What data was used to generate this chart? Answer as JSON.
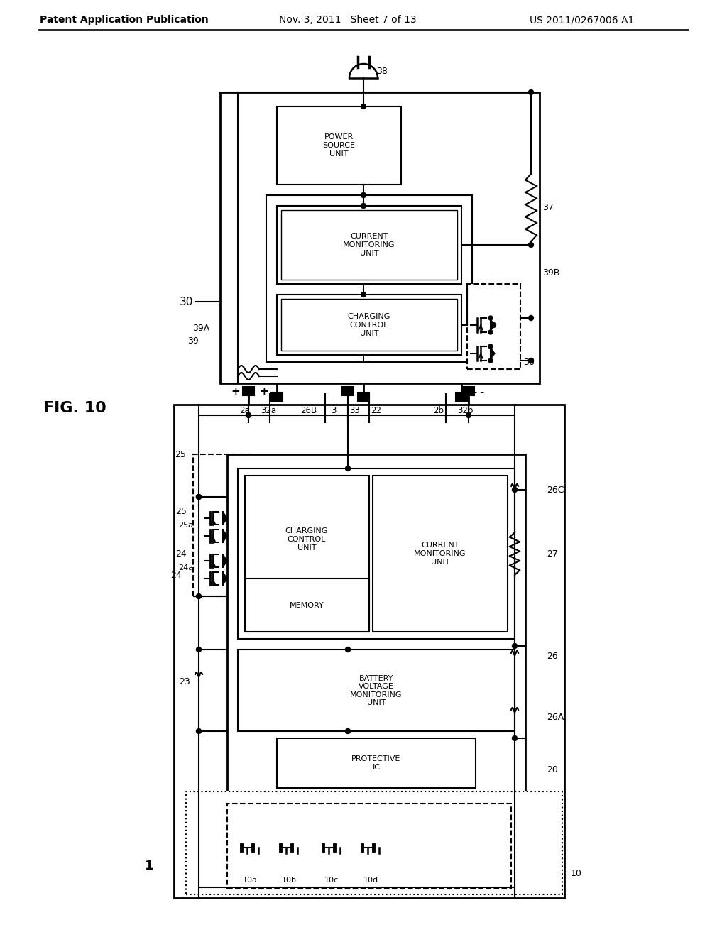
{
  "header_left": "Patent Application Publication",
  "header_center": "Nov. 3, 2011   Sheet 7 of 13",
  "header_right": "US 2011/0267006 A1",
  "fig_label": "FIG. 10",
  "bg_color": "#ffffff"
}
